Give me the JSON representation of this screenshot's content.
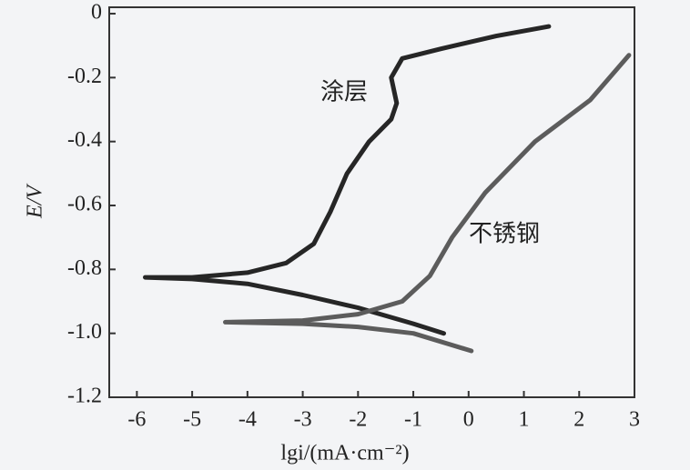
{
  "chart_data": {
    "type": "line",
    "xlabel": "lgi/(mA·cm⁻²)",
    "ylabel": "E/V",
    "xlim": [
      -6.5,
      3
    ],
    "ylim": [
      -1.2,
      0.02
    ],
    "xticks": [
      -6,
      -5,
      -4,
      -3,
      -2,
      -1,
      0,
      1,
      2,
      3
    ],
    "yticks": [
      0,
      -0.2,
      -0.4,
      -0.6,
      -0.8,
      {
        "value": -1.0,
        "label": "-1.0"
      },
      -1.2
    ],
    "series": [
      {
        "name": "涂层",
        "color": "#262626",
        "x": [
          -0.45,
          -1,
          -2,
          -3,
          -4,
          -5,
          -5.85,
          -5,
          -4,
          -3.3,
          -2.8,
          -2.5,
          -2.2,
          -1.8,
          -1.4,
          -1.3,
          -1.4,
          -1.2,
          -0.5,
          0.5,
          1.45
        ],
        "values": [
          -1.0,
          -0.97,
          -0.92,
          -0.88,
          -0.845,
          -0.83,
          -0.825,
          -0.825,
          -0.81,
          -0.78,
          -0.72,
          -0.62,
          -0.5,
          -0.4,
          -0.33,
          -0.28,
          -0.2,
          -0.14,
          -0.11,
          -0.07,
          -0.04
        ]
      },
      {
        "name": "不锈钢",
        "color": "#5c5c5c",
        "x": [
          0.05,
          -1,
          -2,
          -3,
          -4.4,
          -3,
          -2,
          -1.2,
          -0.7,
          -0.3,
          0.3,
          1.2,
          2.2,
          2.9
        ],
        "values": [
          -1.055,
          -1.0,
          -0.98,
          -0.97,
          -0.965,
          -0.96,
          -0.94,
          -0.9,
          -0.82,
          -0.7,
          -0.56,
          -0.4,
          -0.27,
          -0.13
        ]
      }
    ]
  }
}
